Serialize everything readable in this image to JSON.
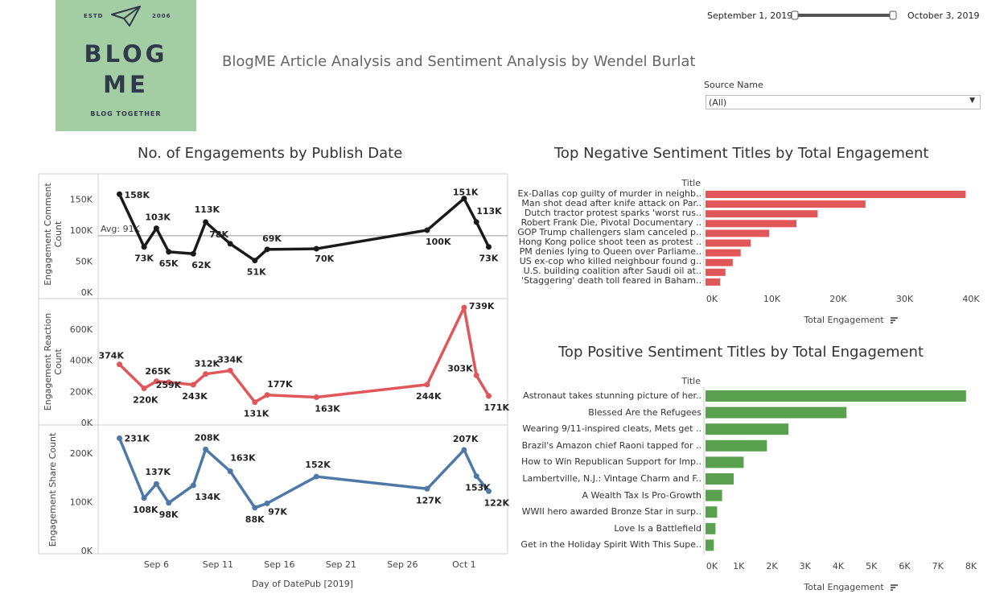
{
  "logo": {
    "estd": "ESTD",
    "year": "2006",
    "line1": "BLOG",
    "line2": "ME",
    "tagline": "BLOG TOGETHER"
  },
  "header": {
    "title": "BlogME Article Analysis and Sentiment Analysis by Wendel Burlat"
  },
  "filters": {
    "date_start": "September 1, 2019",
    "date_end": "October 3, 2019",
    "date_range_fraction": [
      0.0,
      1.0
    ],
    "source_label": "Source Name",
    "source_value": "(All)"
  },
  "line_title": "No. of Engagements by Publish Date",
  "neg_title": "Top Negative Sentiment Titles by Total Engagement",
  "pos_title": "Top Positive Sentiment Titles by Total Engagement",
  "colors": {
    "comment": "#1a1a1a",
    "reaction": "#e15759",
    "share": "#4e79a7",
    "negative": "#e15759",
    "positive": "#59a14f"
  },
  "chart_data": [
    {
      "type": "line",
      "xlabel": "Day of DatePub [2019]",
      "x_ticks": [
        "Sep 6",
        "Sep 11",
        "Sep 16",
        "Sep 21",
        "Sep 26",
        "Oct 1"
      ],
      "x": [
        "2019-09-03",
        "2019-09-05",
        "2019-09-06",
        "2019-09-07",
        "2019-09-09",
        "2019-09-10",
        "2019-09-12",
        "2019-09-14",
        "2019-09-15",
        "2019-09-19",
        "2019-09-28",
        "2019-10-01",
        "2019-10-02",
        "2019-10-03"
      ],
      "series": [
        {
          "ylabel": "Engagement Comment Count",
          "values": [
            158,
            73,
            103,
            65,
            62,
            113,
            78,
            51,
            69,
            70,
            100,
            151,
            113,
            73
          ],
          "labels": [
            "158K",
            "73K",
            "103K",
            "65K",
            "62K",
            "113K",
            "78K",
            "51K",
            "69K",
            "70K",
            "100K",
            "151K",
            "113K",
            "73K"
          ],
          "y_ticks": [
            "0K",
            "50K",
            "100K",
            "150K"
          ],
          "ylim": [
            0,
            170
          ],
          "reference_line": {
            "label": "Avg: 91K",
            "value": 91
          }
        },
        {
          "ylabel": "Engagement Reaction Count",
          "values": [
            374,
            220,
            265,
            259,
            243,
            312,
            334,
            131,
            177,
            163,
            244,
            739,
            303,
            171
          ],
          "labels": [
            "374K",
            "220K",
            "265K",
            "259K",
            "243K",
            "312K",
            "334K",
            "131K",
            "177K",
            "163K",
            "244K",
            "739K",
            "303K",
            "171K"
          ],
          "y_ticks": [
            "0K",
            "200K",
            "400K",
            "600K"
          ],
          "ylim": [
            0,
            750
          ]
        },
        {
          "ylabel": "Engagement Share Count",
          "values": [
            231,
            108,
            137,
            98,
            134,
            208,
            163,
            88,
            97,
            152,
            127,
            207,
            153,
            122
          ],
          "labels": [
            "231K",
            "108K",
            "137K",
            "98K",
            "134K",
            "208K",
            "163K",
            "88K",
            "97K",
            "152K",
            "127K",
            "207K",
            "153K",
            "122K"
          ],
          "y_ticks": [
            "0K",
            "100K",
            "200K"
          ],
          "ylim": [
            0,
            240
          ]
        }
      ]
    },
    {
      "type": "bar",
      "title": "Top Negative Sentiment Titles by Total Engagement",
      "category_header": "Title",
      "xlabel": "Total Engagement",
      "x_ticks": [
        "0K",
        "10K",
        "20K",
        "30K",
        "40K"
      ],
      "xlim": [
        0,
        40000
      ],
      "categories": [
        "Ex-Dallas cop guilty of murder in neighb..",
        "Man shot dead after knife attack on Par..",
        "Dutch tractor protest sparks 'worst rus..",
        "Robert Frank Die, Pivotal Documentary ..",
        "GOP Trump challengers slam canceled p..",
        "Hong Kong police shoot teen as protest ..",
        "PM denies lying to Queen over Parliame..",
        "US ex-cop who killed neighbour found g..",
        "U.S. building coalition after Saudi oil at..",
        "'Staggering' death toll feared in Baham.."
      ],
      "values": [
        39200,
        24100,
        16900,
        13700,
        9600,
        6800,
        5300,
        4100,
        3000,
        2200
      ]
    },
    {
      "type": "bar",
      "title": "Top Positive Sentiment Titles by Total Engagement",
      "category_header": "Title",
      "xlabel": "Total Engagement",
      "x_ticks": [
        "0K",
        "1K",
        "2K",
        "3K",
        "4K",
        "5K",
        "6K",
        "7K",
        "8K"
      ],
      "xlim": [
        0,
        8000
      ],
      "categories": [
        "Astronaut takes stunning picture of her..",
        "Blessed Are the Refugees",
        "Wearing 9/11-inspired cleats, Mets get ..",
        "Brazil's Amazon chief Raoni tapped for ..",
        "How to Win Republican Support for Imp..",
        "Lambertville, N.J.: Vintage Charm and F..",
        "A Wealth Tax Is Pro-Growth",
        "WWII hero awarded Bronze Star in surp..",
        "Love Is a Battlefield",
        "Get in the Holiday Spirit With This Supe.."
      ],
      "values": [
        7850,
        4250,
        2500,
        1850,
        1150,
        850,
        500,
        350,
        300,
        250
      ]
    }
  ]
}
